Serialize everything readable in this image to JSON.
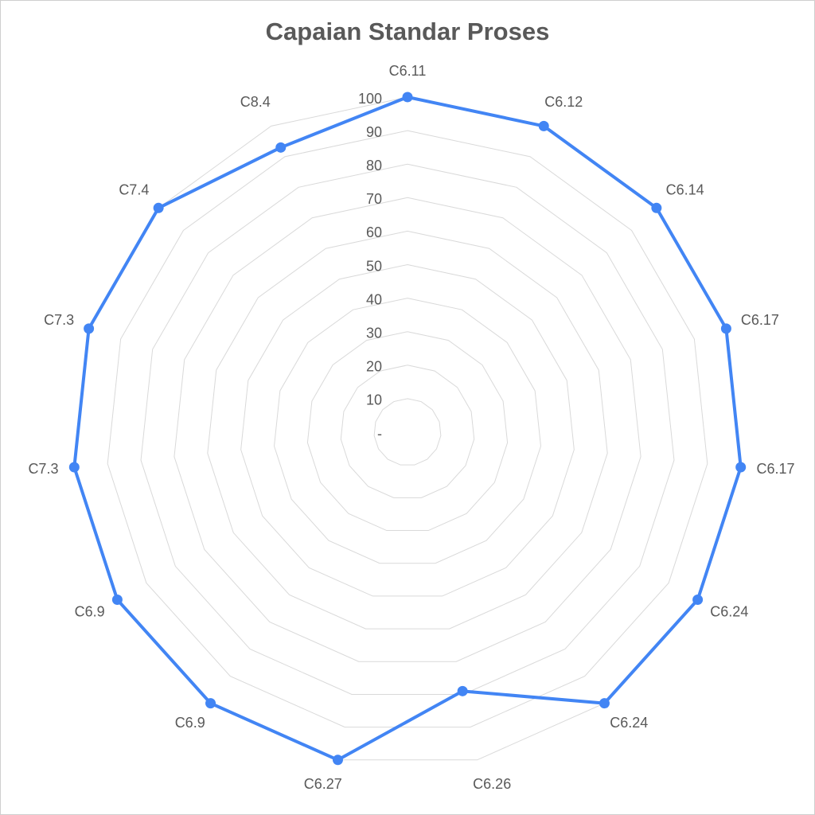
{
  "chart_data": {
    "type": "radar",
    "title": "Capaian Standar Proses",
    "categories": [
      "C6.11",
      "C6.12",
      "C6.14",
      "C6.17",
      "C6.17",
      "C6.24",
      "C6.24",
      "C6.26",
      "C6.27",
      "C6.9",
      "C6.9",
      "C7.3",
      "C7.3",
      "C7.4",
      "C8.4"
    ],
    "values": [
      100,
      100,
      100,
      100,
      100,
      100,
      100,
      79,
      100,
      100,
      100,
      100,
      100,
      100,
      93
    ],
    "color": "#4285f4",
    "ylim": [
      0,
      100
    ],
    "yticks": [
      {
        "value": 0,
        "label": "-"
      },
      10,
      20,
      30,
      40,
      50,
      60,
      70,
      80,
      90,
      100
    ],
    "grid": true
  }
}
